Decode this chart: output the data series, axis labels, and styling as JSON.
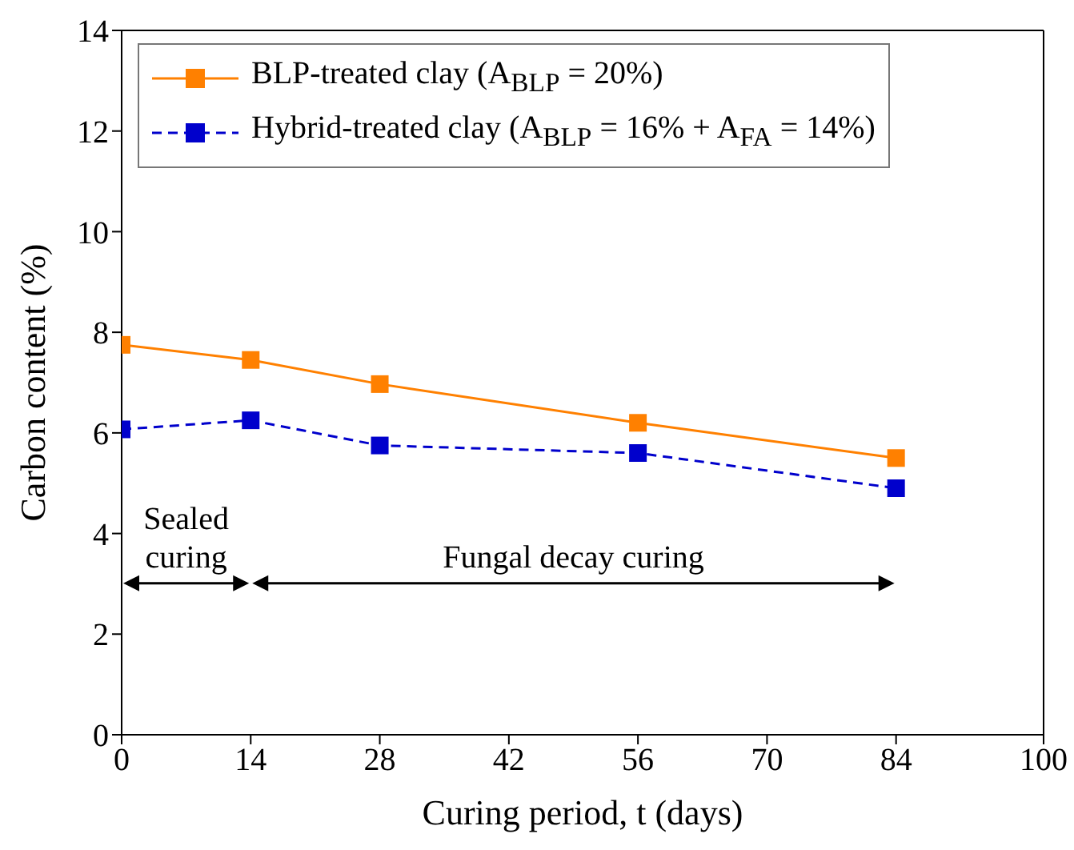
{
  "chart_data": {
    "type": "line",
    "xlabel": "Curing period, t (days)",
    "ylabel": "Carbon content (%)",
    "x": [
      0,
      14,
      28,
      56,
      84
    ],
    "series": [
      {
        "name": "BLP-treated clay (A$_{BLP}$ = 20%)",
        "color": "#ff8000",
        "values": [
          7.75,
          7.45,
          6.97,
          6.2,
          5.5
        ],
        "line_style": "solid"
      },
      {
        "name": "Hybrid-treated clay (A$_{BLP}$ = 16% + A$_{FA}$ = 14%)",
        "color": "#0000cc",
        "values": [
          6.07,
          6.25,
          5.75,
          5.6,
          4.9
        ],
        "line_style": "dashed"
      }
    ],
    "xlim": [
      0,
      100
    ],
    "xticks": [
      0,
      14,
      28,
      42,
      56,
      70,
      84,
      100
    ],
    "ylim": [
      0,
      14
    ],
    "yticks": [
      0,
      2,
      4,
      6,
      8,
      10,
      12,
      14
    ],
    "marker": "square",
    "legend": "top left",
    "grid": false,
    "annotations": [
      "Sealed curing",
      "Fungal decay curing"
    ]
  }
}
